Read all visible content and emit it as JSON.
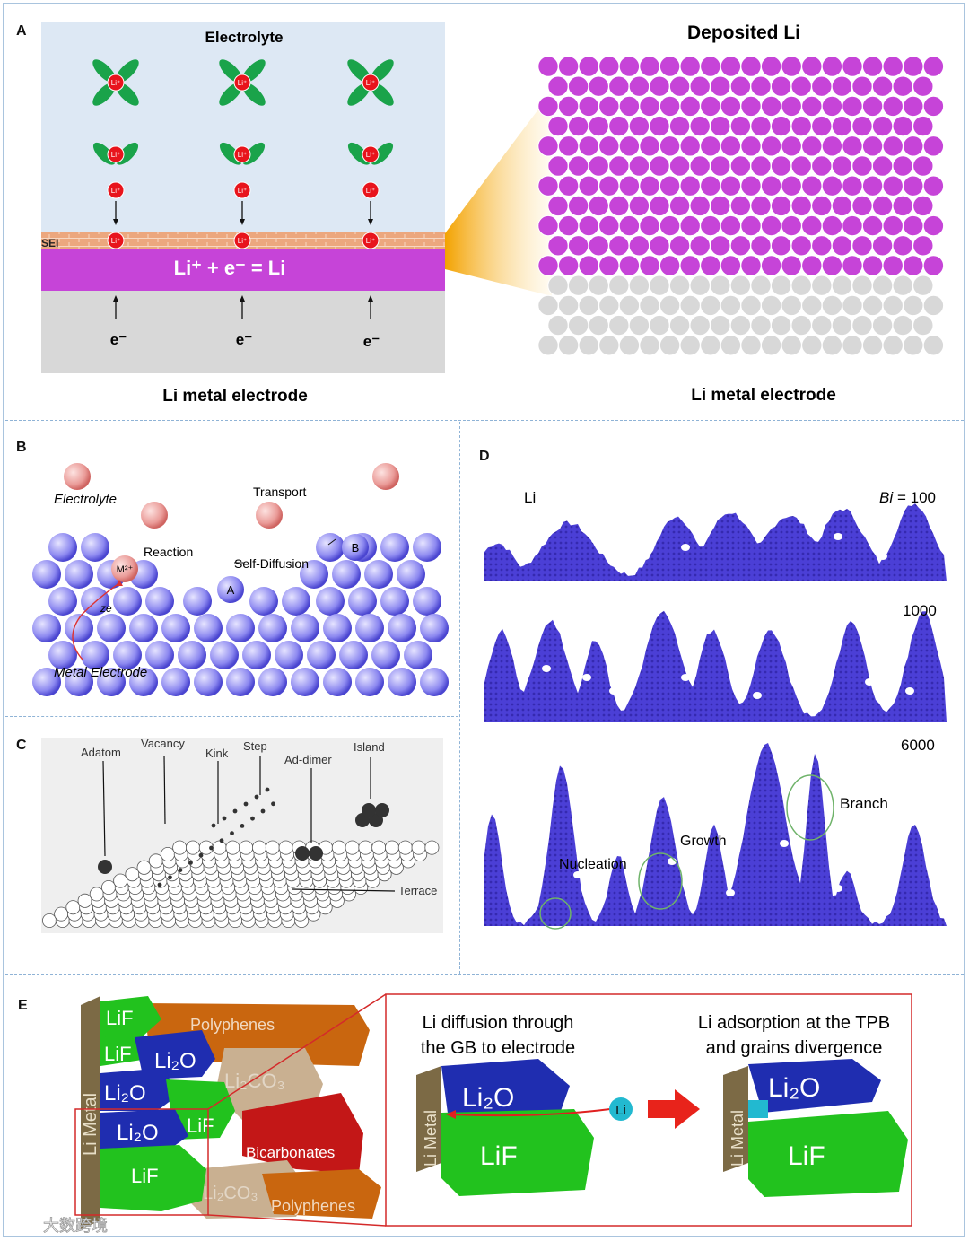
{
  "panels": {
    "A": {
      "label": "A",
      "electrolyte": "Electrolyte",
      "sei": "SEI",
      "ion": "Li⁺",
      "reaction": "Li⁺ + e⁻ = Li",
      "electron": "e⁻",
      "left_caption": "Li metal electrode",
      "deposited_title": "Deposited Li",
      "right_caption": "Li metal electrode",
      "colors": {
        "electrolyte_bg": "#dde8f4",
        "li_metal": "#c644d8",
        "collector": "#d8d8d8",
        "sei": "#eca77e",
        "solvent": "#1aa34a",
        "ion": "#e8141c"
      }
    },
    "B": {
      "label": "B",
      "electrolyte": "Electrolyte",
      "transport": "Transport",
      "reaction": "Reaction",
      "self_diffusion": "Self-Diffusion",
      "ion": "M²⁺",
      "ze": "ze",
      "site_a": "A",
      "site_b": "B",
      "electrode": "Metal Electrode"
    },
    "C": {
      "label": "C",
      "features": [
        "Adatom",
        "Vacancy",
        "Kink",
        "Step",
        "Ad-dimer",
        "Island",
        "Terrace"
      ]
    },
    "D": {
      "label": "D",
      "material": "Li",
      "bi_symbol": "Bi",
      "bi_values": [
        "= 100",
        "1000",
        "6000"
      ],
      "annotations": [
        "Branch",
        "Growth",
        "Nucleation"
      ]
    },
    "E": {
      "label": "E",
      "metal": "Li Metal",
      "components": [
        "LiF",
        "Polyphenes",
        "LiF",
        "Li₂O",
        "Li₂O",
        "Li₂CO₃",
        "Li₂O",
        "LiF",
        "Bicarbonates",
        "LiF",
        "Li₂CO₃",
        "Polyphenes"
      ],
      "step1_caption": [
        "Li diffusion through",
        "the GB to electrode"
      ],
      "step2_caption": [
        "Li adsorption at the TPB",
        "and grains divergence"
      ],
      "li_atom": "Li",
      "step_metal": "Li Metal",
      "step_li2o": "Li₂O",
      "step_lif": "LiF"
    }
  },
  "watermark": "大数跨境"
}
